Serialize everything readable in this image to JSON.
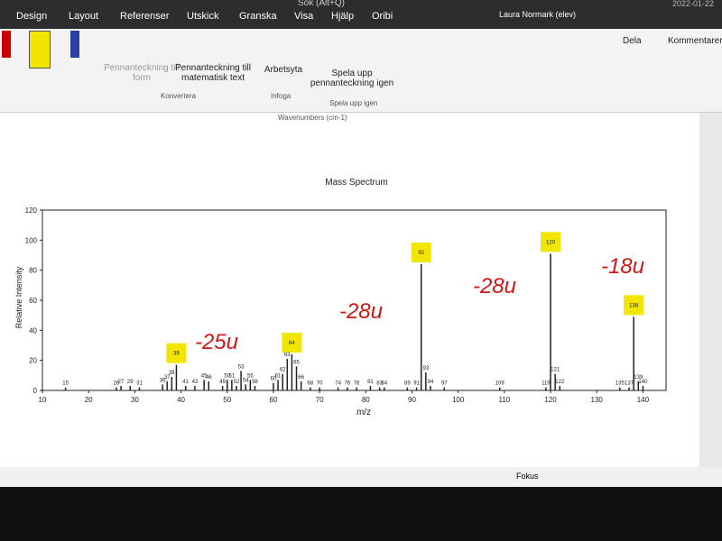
{
  "ribbon": {
    "tabs": [
      "Design",
      "Layout",
      "Referenser",
      "Utskick",
      "Granska",
      "Visa",
      "Hjälp",
      "Oribi"
    ],
    "search": "Sök (Alt+Q)",
    "user": "Laura Normark (elev)",
    "date": "2022-01-22",
    "share": "Dela",
    "comments": "Kommentarer",
    "groups": [
      {
        "name": "Konvertera",
        "buttons": [
          "Pennanteckning till form",
          "Pennanteckning till matematisk text"
        ]
      },
      {
        "name": "Infoga",
        "buttons": [
          "Arbetsyta"
        ]
      },
      {
        "name": "Spela upp igen",
        "buttons": [
          "Spela upp pennanteckning igen"
        ]
      }
    ]
  },
  "document": {
    "caption": "Wavenumbers (cm-1)"
  },
  "status": {
    "focus": "Fokus"
  },
  "chart_data": {
    "type": "bar",
    "title": "Mass Spectrum",
    "x_label": "m/z",
    "y_label": "Relative Intensity",
    "color": "#222222",
    "highlight_color": "#f2e600",
    "xlim": [
      10,
      145
    ],
    "ylim": [
      0,
      120
    ],
    "xticks": [
      10,
      20,
      30,
      40,
      50,
      60,
      70,
      80,
      90,
      100,
      110,
      120,
      130,
      140
    ],
    "yticks": [
      0,
      20,
      40,
      60,
      80,
      100,
      120
    ],
    "x": [
      15,
      26,
      27,
      29,
      31,
      36,
      37,
      38,
      39,
      41,
      43,
      45,
      46,
      49,
      50,
      51,
      52,
      53,
      54,
      55,
      56,
      60,
      61,
      62,
      63,
      64,
      65,
      66,
      68,
      70,
      74,
      76,
      78,
      81,
      83,
      84,
      89,
      91,
      92,
      93,
      94,
      97,
      109,
      119,
      120,
      121,
      122,
      135,
      137,
      138,
      139,
      140
    ],
    "values": [
      2,
      2,
      3,
      3,
      2,
      4,
      6,
      9,
      17,
      3,
      3,
      7,
      6,
      3,
      7,
      7,
      3,
      13,
      4,
      7,
      3,
      5,
      7,
      11,
      21,
      24,
      16,
      6,
      2,
      2,
      2,
      2,
      2,
      3,
      2,
      2,
      2,
      2,
      84,
      12,
      3,
      2,
      2,
      2,
      91,
      11,
      3,
      2,
      2,
      49,
      6,
      3
    ],
    "highlighted_x": [
      39,
      64,
      92,
      120,
      138
    ],
    "annotations": [
      "-25u",
      "-28u",
      "-28u",
      "-18u"
    ]
  }
}
